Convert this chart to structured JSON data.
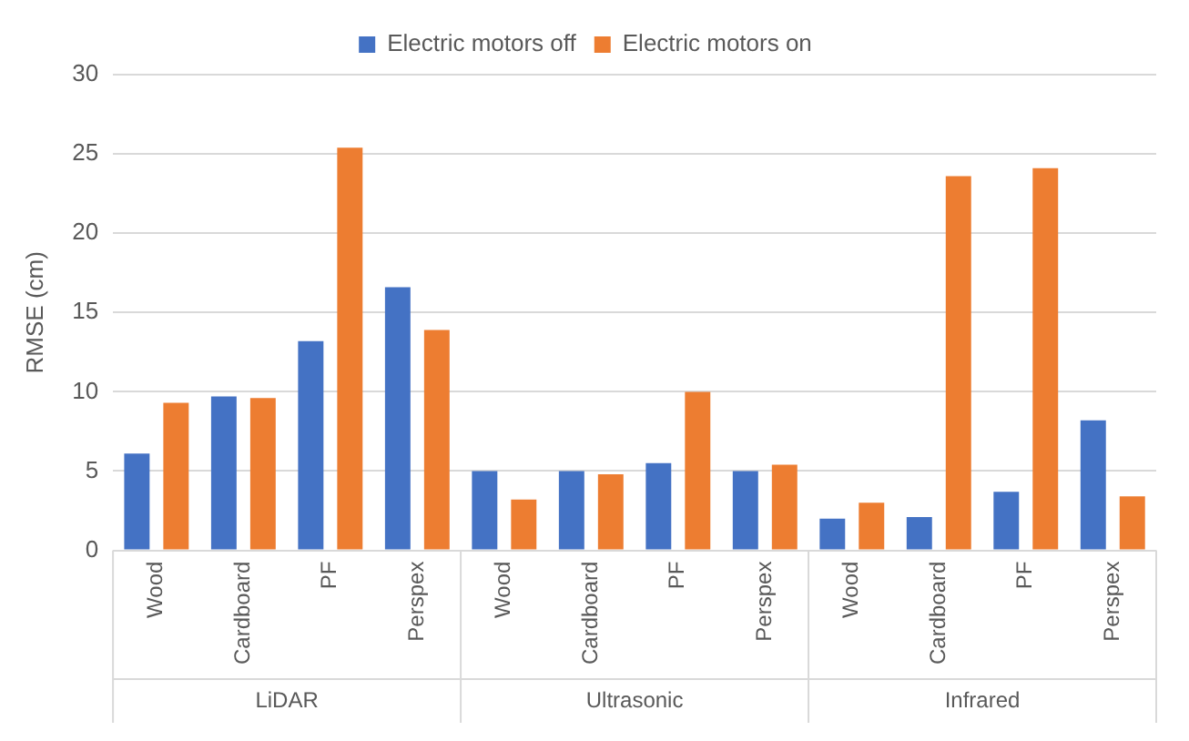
{
  "chart_data": {
    "type": "bar",
    "ylabel": "RMSE (cm)",
    "categories": [
      "Wood",
      "Cardboard",
      "PF",
      "Perspex",
      "Wood",
      "Cardboard",
      "PF",
      "Perspex",
      "Wood",
      "Cardboard",
      "PF",
      "Perspex"
    ],
    "series": [
      {
        "name": "Electric motors off",
        "color": "#4472c4",
        "values": [
          6.1,
          9.7,
          13.2,
          16.6,
          5.0,
          5.0,
          5.5,
          5.0,
          2.0,
          2.1,
          3.7,
          8.2
        ]
      },
      {
        "name": "Electric motors on",
        "color": "#ed7d31",
        "values": [
          9.3,
          9.6,
          25.4,
          13.9,
          3.2,
          4.8,
          10.0,
          5.4,
          3.0,
          23.6,
          24.1,
          3.4
        ]
      }
    ],
    "annotations": [
      "LiDAR",
      "Ultrasonic",
      "Infrared"
    ],
    "ylim": [
      0,
      30
    ],
    "yticks": [
      0,
      5,
      10,
      15,
      20,
      25,
      30
    ],
    "grid": "y",
    "legend": "top"
  }
}
